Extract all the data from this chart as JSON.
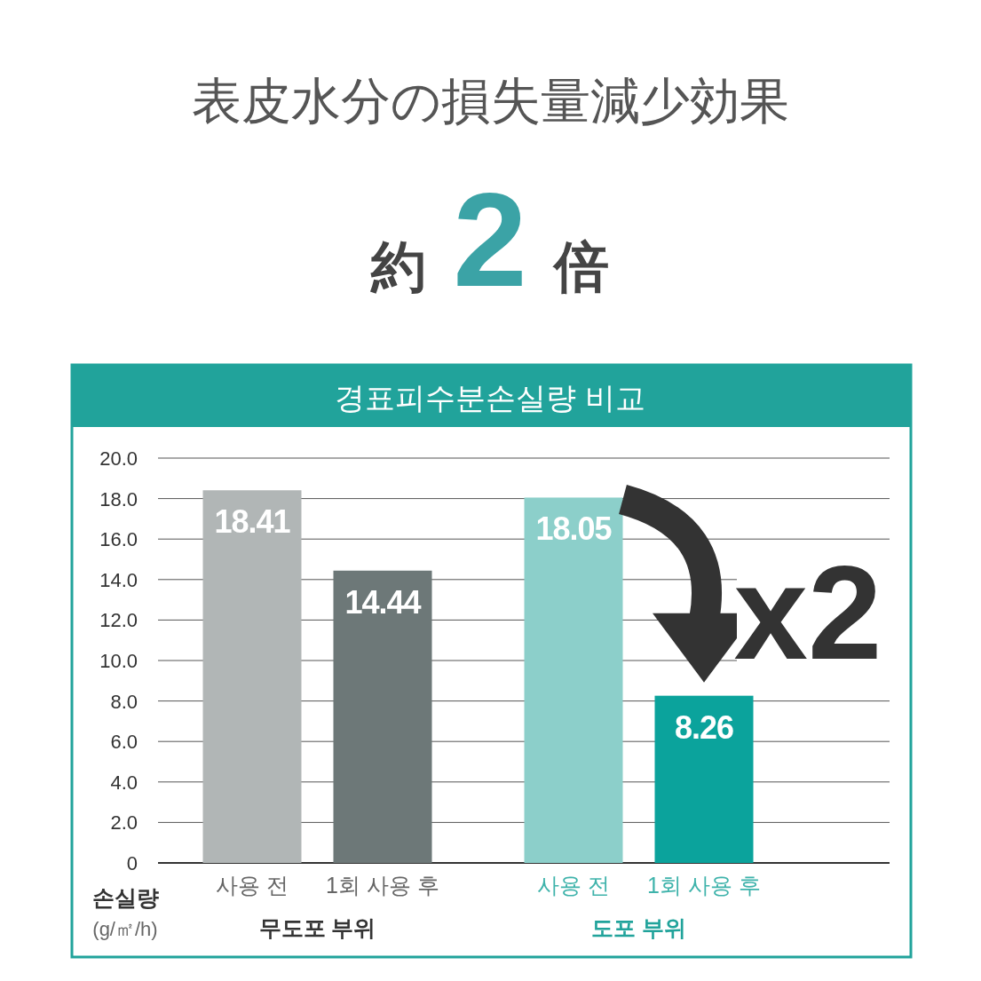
{
  "chart_data": {
    "type": "bar",
    "title": "表皮水分の損失量減少効果",
    "subtitle": "約 2 倍",
    "ylabel": "손실량\n(g/㎡/h)",
    "categories": [
      "사용 전",
      "1회 사용 후",
      "사용 전",
      "1회 사용 후"
    ],
    "values": [
      18.41,
      14.44,
      18.05,
      8.26
    ],
    "colors": [
      "#b1b6b6",
      "#6d7878",
      "#8ccfca",
      "#0ba39c"
    ],
    "ylim": [
      0,
      20
    ],
    "yticks": [
      {
        "value": 0,
        "label": "0"
      },
      {
        "value": 2,
        "label": "2.0"
      },
      {
        "value": 4,
        "label": "4.0"
      },
      {
        "value": 6,
        "label": "6.0"
      },
      {
        "value": 8,
        "label": "8.0"
      },
      {
        "value": 10,
        "label": "10.0"
      },
      {
        "value": 12,
        "label": "12.0"
      },
      {
        "value": 14,
        "label": "14.0"
      },
      {
        "value": 16,
        "label": "16.0"
      },
      {
        "value": 18,
        "label": "18.0"
      },
      {
        "value": 20,
        "label": "20.0"
      }
    ],
    "grid": "y",
    "data_labels": true,
    "annotations": [
      "경표피수분손실량 비교",
      "무도포 부위",
      "도포 부위",
      "x2"
    ]
  }
}
